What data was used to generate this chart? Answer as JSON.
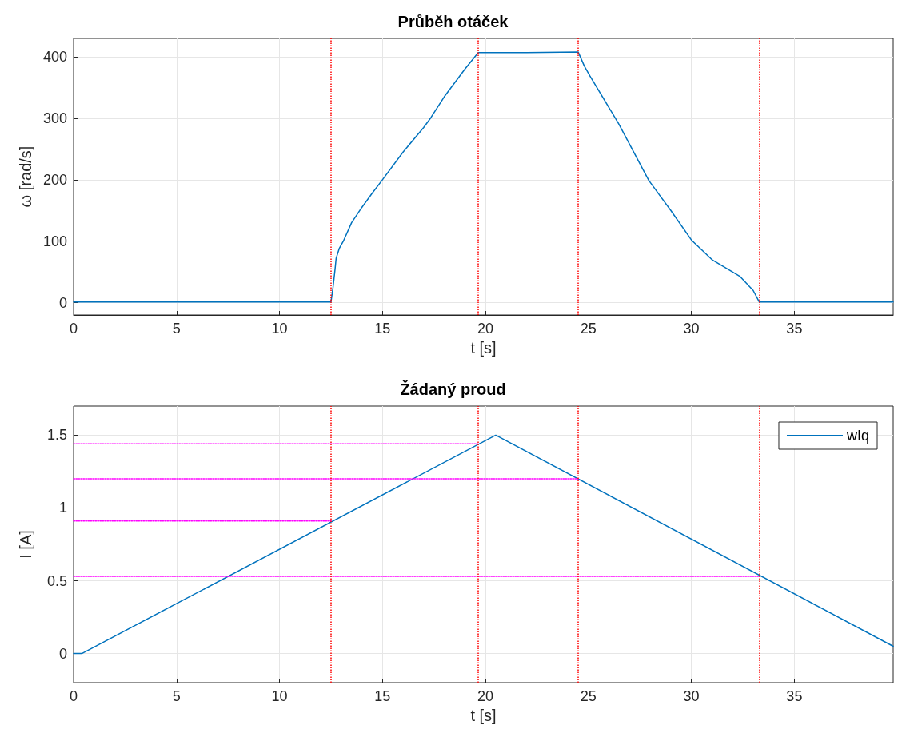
{
  "chart_data": [
    {
      "type": "line",
      "title": "Průběh otáček",
      "xlabel": "t [s]",
      "ylabel": "ω [rad/s]",
      "xlim": [
        0,
        39.8
      ],
      "xticks": [
        0,
        5,
        10,
        15,
        20,
        25,
        30,
        35
      ],
      "ylim": [
        -20,
        430
      ],
      "yticks": [
        0,
        100,
        200,
        300,
        400
      ],
      "grid": true,
      "legend": false,
      "series": [
        {
          "color": "#0072bd",
          "x": [
            0,
            6,
            12.5,
            12.6,
            12.7,
            12.75,
            12.9,
            13.1,
            13.5,
            14,
            14.5,
            15,
            16,
            17,
            17.35,
            18,
            19,
            19.65,
            22,
            24.5,
            24.8,
            25.07,
            26.47,
            27.93,
            29,
            30,
            31,
            32.35,
            33,
            33.3,
            39.8
          ],
          "values": [
            1,
            1,
            1,
            25,
            55,
            72,
            88,
            100,
            130,
            155,
            178,
            200,
            245,
            285,
            301,
            335,
            380,
            407,
            407,
            408,
            385,
            369,
            291,
            199,
            150,
            102,
            70,
            43,
            20,
            1,
            1
          ]
        }
      ],
      "ref_lines": [
        {
          "axis": "x",
          "value": 12.5,
          "color": "#ff0000",
          "line_style": "dotted"
        },
        {
          "axis": "x",
          "value": 19.65,
          "color": "#ff0000",
          "line_style": "dotted"
        },
        {
          "axis": "x",
          "value": 24.5,
          "color": "#ff0000",
          "line_style": "dotted"
        },
        {
          "axis": "x",
          "value": 33.3,
          "color": "#ff0000",
          "line_style": "dotted"
        }
      ]
    },
    {
      "type": "line",
      "title": "Žádaný proud",
      "xlabel": "t [s]",
      "ylabel": "I [A]",
      "xlim": [
        0,
        39.8
      ],
      "xticks": [
        0,
        5,
        10,
        15,
        20,
        25,
        30,
        35
      ],
      "ylim": [
        -0.2,
        1.7
      ],
      "yticks": [
        0,
        0.5,
        1,
        1.5
      ],
      "grid": true,
      "legend": "top right",
      "series": [
        {
          "name": "wIq",
          "color": "#0072bd",
          "x": [
            0,
            0.4,
            20.5,
            39.8
          ],
          "values": [
            0,
            0,
            1.5,
            0.05
          ]
        },
        {
          "color": "#ff00ff",
          "line_style": "dotted",
          "x": [
            0,
            19.65
          ],
          "values": [
            1.44,
            1.44
          ]
        },
        {
          "color": "#ff00ff",
          "line_style": "dotted",
          "x": [
            0,
            24.5
          ],
          "values": [
            1.2,
            1.2
          ]
        },
        {
          "color": "#ff00ff",
          "line_style": "dotted",
          "x": [
            0,
            12.5
          ],
          "values": [
            0.91,
            0.91
          ]
        },
        {
          "color": "#ff00ff",
          "line_style": "dotted",
          "x": [
            0,
            33.3
          ],
          "values": [
            0.53,
            0.53
          ]
        }
      ],
      "ref_lines": [
        {
          "axis": "x",
          "value": 12.5,
          "color": "#ff0000",
          "line_style": "dotted"
        },
        {
          "axis": "x",
          "value": 19.65,
          "color": "#ff0000",
          "line_style": "dotted"
        },
        {
          "axis": "x",
          "value": 24.5,
          "color": "#ff0000",
          "line_style": "dotted"
        },
        {
          "axis": "x",
          "value": 33.3,
          "color": "#ff0000",
          "line_style": "dotted"
        }
      ]
    }
  ]
}
